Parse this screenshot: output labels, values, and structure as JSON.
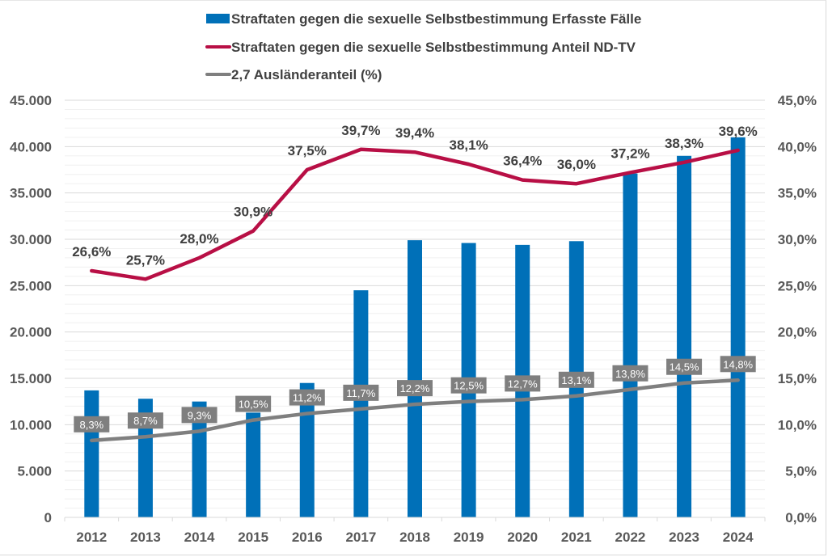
{
  "chart_data": {
    "type": "bar",
    "title": "",
    "categories": [
      "2012",
      "2013",
      "2014",
      "2015",
      "2016",
      "2017",
      "2018",
      "2019",
      "2020",
      "2021",
      "2022",
      "2023",
      "2024"
    ],
    "series": [
      {
        "name": "Straftaten gegen die sexuelle Selbstbestimmung Erfasste Fälle",
        "type": "bar",
        "axis": "left",
        "color": "#0070b8",
        "values": [
          13700,
          12800,
          12500,
          11300,
          14500,
          24500,
          29900,
          29600,
          29400,
          29800,
          37100,
          39000,
          41000
        ]
      },
      {
        "name": "Straftaten gegen die sexuelle Selbstbestimmung Anteil ND-TV",
        "type": "line",
        "axis": "right",
        "color": "#b80f45",
        "values": [
          26.6,
          25.7,
          28.0,
          30.9,
          37.5,
          39.7,
          39.4,
          38.1,
          36.4,
          36.0,
          37.2,
          38.3,
          39.6
        ],
        "labels": [
          "26,6%",
          "25,7%",
          "28,0%",
          "30,9%",
          "37,5%",
          "39,7%",
          "39,4%",
          "38,1%",
          "36,4%",
          "36,0%",
          "37,2%",
          "38,3%",
          "39,6%"
        ]
      },
      {
        "name": "2,7 Ausländeranteil (%)",
        "type": "line",
        "axis": "right",
        "color": "#7f7f7f",
        "values": [
          8.3,
          8.7,
          9.3,
          10.5,
          11.2,
          11.7,
          12.2,
          12.5,
          12.7,
          13.1,
          13.8,
          14.5,
          14.8
        ],
        "labels": [
          "8,3%",
          "8,7%",
          "9,3%",
          "10,5%",
          "11,2%",
          "11,7%",
          "12,2%",
          "12,5%",
          "12,7%",
          "13,1%",
          "13,8%",
          "14,5%",
          "14,8%"
        ]
      }
    ],
    "y_left": {
      "ylim": [
        0,
        45000
      ],
      "ticks": [
        "0",
        "5.000",
        "10.000",
        "15.000",
        "20.000",
        "25.000",
        "30.000",
        "35.000",
        "40.000",
        "45.000"
      ]
    },
    "y_right": {
      "ylim": [
        0,
        45
      ],
      "ticks": [
        "0,0%",
        "5,0%",
        "10,0%",
        "15,0%",
        "20,0%",
        "25,0%",
        "30,0%",
        "35,0%",
        "40,0%",
        "45,0%"
      ]
    },
    "xlabel": "",
    "ylabel": "",
    "grid": true,
    "legend_position": "top"
  }
}
